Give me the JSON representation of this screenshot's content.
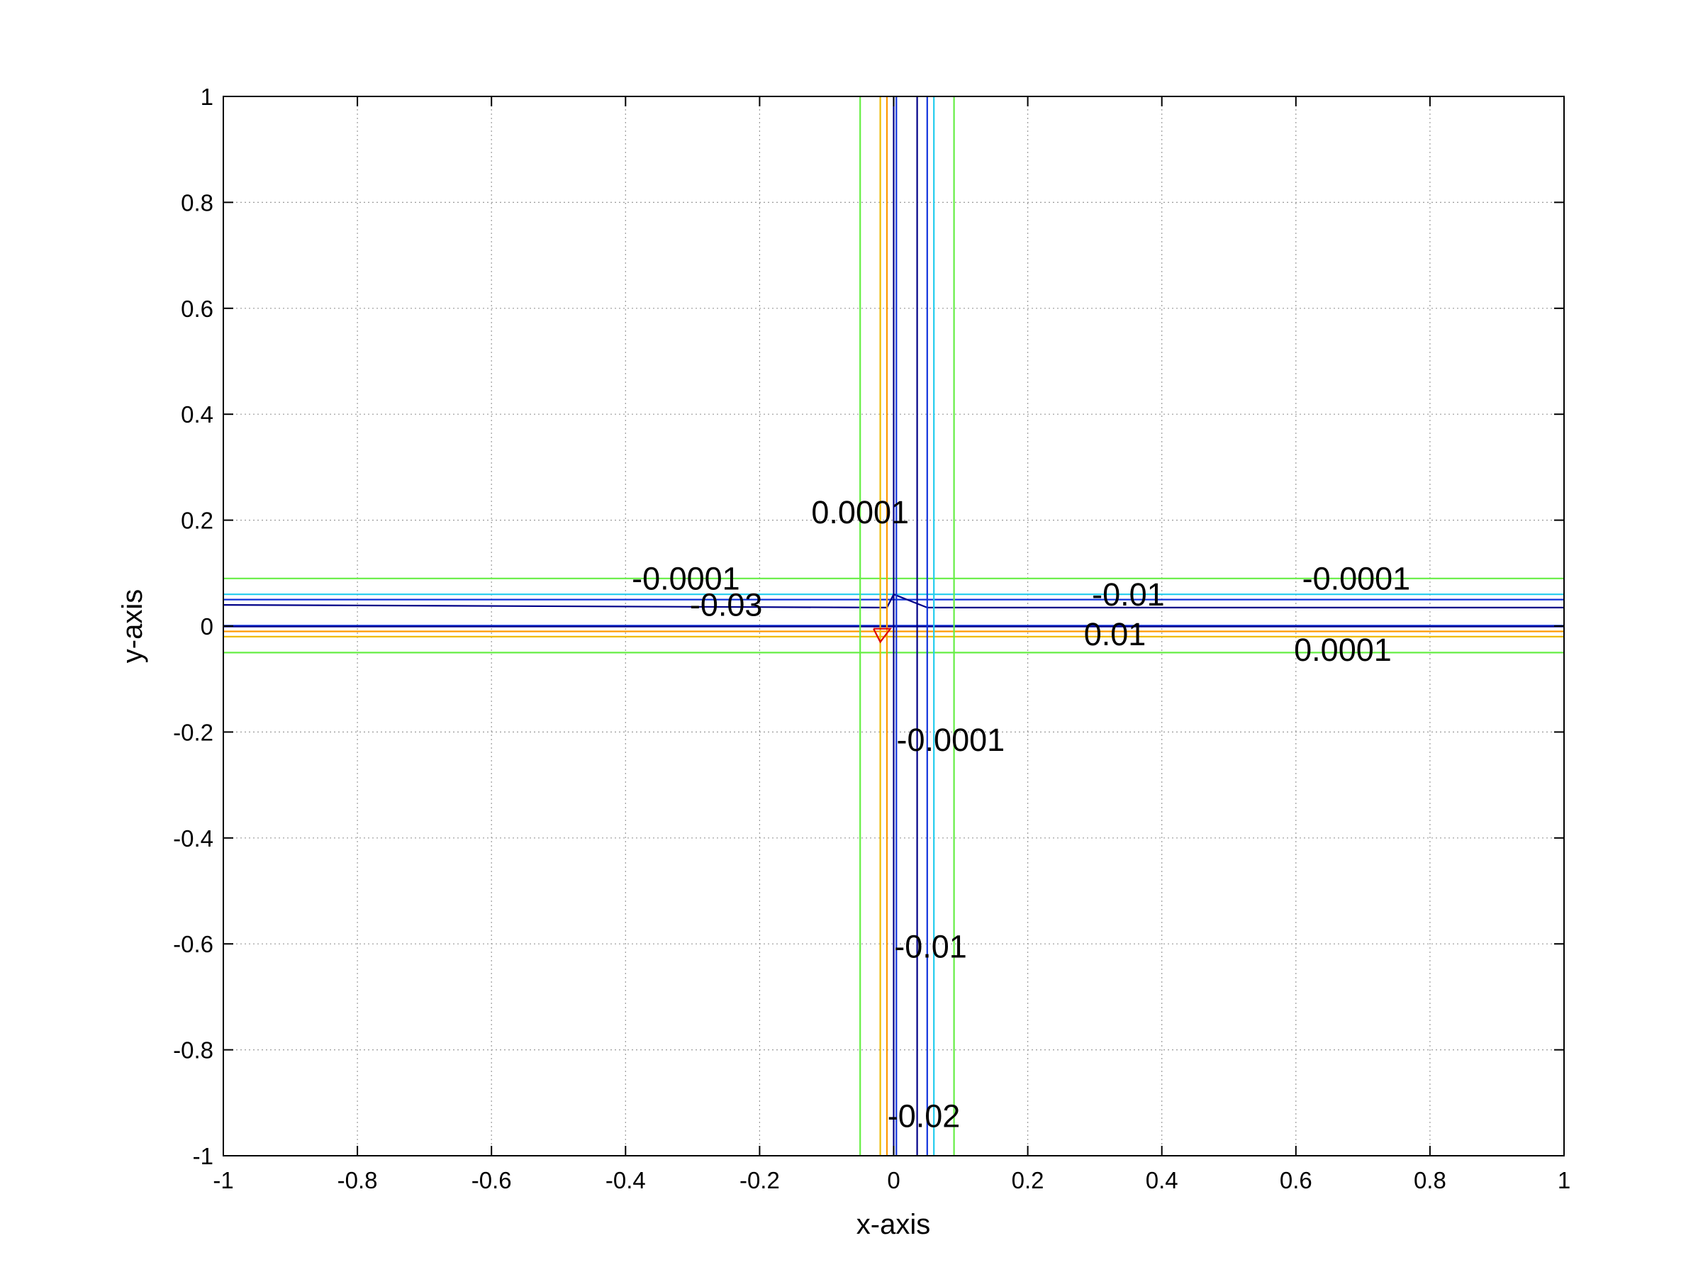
{
  "chart_data": {
    "type": "contour",
    "title": "",
    "xlabel": "x-axis",
    "ylabel": "y-axis",
    "xlim": [
      -1,
      1
    ],
    "ylim": [
      -1,
      1
    ],
    "grid": true,
    "xticks": [
      -1,
      -0.8,
      -0.6,
      -0.4,
      -0.2,
      0,
      0.2,
      0.4,
      0.6,
      0.8,
      1
    ],
    "yticks": [
      -1,
      -0.8,
      -0.6,
      -0.4,
      -0.2,
      0,
      0.2,
      0.4,
      0.6,
      0.8,
      1
    ],
    "xtick_labels": [
      "-1",
      "-0.8",
      "-0.6",
      "-0.4",
      "-0.2",
      "0",
      "0.2",
      "0.4",
      "0.6",
      "0.8",
      "1"
    ],
    "ytick_labels": [
      "-1",
      "-0.8",
      "-0.6",
      "-0.4",
      "-0.2",
      "0",
      "0.2",
      "0.4",
      "0.6",
      "0.8",
      "1"
    ],
    "colors": {
      "lightgreen": "#66ee44",
      "cyan": "#22ccee",
      "blue": "#1133dd",
      "navy": "#000088",
      "yellow": "#eebb00",
      "orange": "#ff9900",
      "red": "#dd0000",
      "gridline": "#999999"
    },
    "contours": [
      {
        "x": [
          -1,
          1
        ],
        "y": [
          0.09,
          0.09
        ],
        "color": "lightgreen"
      },
      {
        "x": [
          -1,
          1
        ],
        "y": [
          0.06,
          0.06
        ],
        "color": "cyan"
      },
      {
        "x": [
          -1,
          1
        ],
        "y": [
          0.05,
          0.05
        ],
        "color": "blue"
      },
      {
        "x": [
          -1,
          -0.01,
          0.0,
          0.05,
          1
        ],
        "y": [
          0.04,
          0.035,
          0.06,
          0.035,
          0.035
        ],
        "color": "navy"
      },
      {
        "x": [
          -1,
          1
        ],
        "y": [
          0.001,
          0.001
        ],
        "color": "blue"
      },
      {
        "x": [
          -1,
          1
        ],
        "y": [
          -0.001,
          -0.001
        ],
        "color": "navy"
      },
      {
        "x": [
          -1,
          1
        ],
        "y": [
          -0.01,
          -0.01
        ],
        "color": "orange"
      },
      {
        "x": [
          -1,
          1
        ],
        "y": [
          -0.02,
          -0.02
        ],
        "color": "yellow"
      },
      {
        "x": [
          -1,
          1
        ],
        "y": [
          -0.05,
          -0.05
        ],
        "color": "lightgreen"
      },
      {
        "x": [
          -0.05,
          -0.05
        ],
        "y": [
          -1,
          1
        ],
        "color": "lightgreen"
      },
      {
        "x": [
          -0.02,
          -0.02
        ],
        "y": [
          -1,
          1
        ],
        "color": "yellow"
      },
      {
        "x": [
          -0.01,
          -0.01
        ],
        "y": [
          -1,
          1
        ],
        "color": "orange"
      },
      {
        "x": [
          0.0,
          0.0
        ],
        "y": [
          -1,
          1
        ],
        "color": "navy"
      },
      {
        "x": [
          0.004,
          0.004
        ],
        "y": [
          -1,
          1
        ],
        "color": "blue"
      },
      {
        "x": [
          0.035,
          0.035
        ],
        "y": [
          -1,
          1
        ],
        "color": "navy"
      },
      {
        "x": [
          0.05,
          0.05
        ],
        "y": [
          -1,
          1
        ],
        "color": "blue"
      },
      {
        "x": [
          0.06,
          0.06
        ],
        "y": [
          -1,
          1
        ],
        "color": "cyan"
      },
      {
        "x": [
          0.09,
          0.09
        ],
        "y": [
          -1,
          1
        ],
        "color": "lightgreen"
      },
      {
        "x": [
          -0.03,
          -0.005,
          -0.02,
          -0.03
        ],
        "y": [
          -0.005,
          -0.005,
          -0.03,
          -0.005
        ],
        "color": "red"
      }
    ],
    "contour_labels": [
      {
        "text": "0.0001",
        "x": -0.05,
        "y": 0.21
      },
      {
        "text": "-0.0001",
        "x": -0.31,
        "y": 0.085
      },
      {
        "text": "-0.03",
        "x": -0.25,
        "y": 0.035
      },
      {
        "text": "-0.01",
        "x": 0.35,
        "y": 0.055
      },
      {
        "text": "-0.0001",
        "x": 0.69,
        "y": 0.085
      },
      {
        "text": "0.01",
        "x": 0.33,
        "y": -0.02
      },
      {
        "text": "0.0001",
        "x": 0.67,
        "y": -0.05
      },
      {
        "text": "-0.0001",
        "x": 0.085,
        "y": -0.22
      },
      {
        "text": "-0.01",
        "x": 0.055,
        "y": -0.61
      },
      {
        "text": "-0.02",
        "x": 0.045,
        "y": -0.93
      }
    ]
  }
}
